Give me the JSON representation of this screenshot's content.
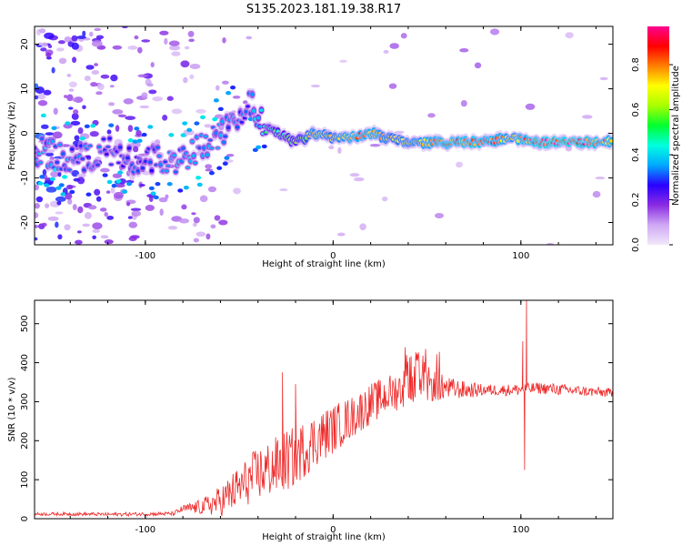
{
  "title": "S135.2023.181.19.38.R17",
  "colors": {
    "snr_line": "#ee2a2a",
    "axis": "#000000",
    "background": "#ffffff"
  },
  "chart_data": [
    {
      "type": "heatmap",
      "name": "spectrogram",
      "xlabel": "Height of straight line (km)",
      "ylabel": "Frequency (Hz)",
      "xlim": [
        -159,
        149
      ],
      "ylim": [
        -25,
        24
      ],
      "xticks": [
        -100,
        0,
        100
      ],
      "xtick_labels": [
        "-100",
        "0",
        "100"
      ],
      "yticks": [
        -20,
        -10,
        0,
        10,
        20
      ],
      "ytick_labels": [
        "-20",
        "-10",
        "0",
        "10",
        "20"
      ],
      "colorbar": {
        "label": "Normalized spectral amplitude",
        "range": [
          0,
          0.97
        ],
        "ticks": [
          0,
          0.2,
          0.4,
          0.6,
          0.8
        ],
        "tick_labels": [
          "0.0",
          "0.2",
          "0.4",
          "0.6",
          "0.8"
        ],
        "colormap": [
          "#f2e8fb",
          "#cfa8f4",
          "#8a2be2",
          "#2a00ff",
          "#00a8ff",
          "#00ffe0",
          "#00ff30",
          "#a8ff00",
          "#ffff00",
          "#ff8000",
          "#ff0000",
          "#ff0090"
        ]
      },
      "ridge_freq_points": [
        {
          "x": -155,
          "y": -4
        },
        {
          "x": -140,
          "y": -6
        },
        {
          "x": -120,
          "y": -4
        },
        {
          "x": -105,
          "y": -6
        },
        {
          "x": -95,
          "y": -6
        },
        {
          "x": -80,
          "y": -6
        },
        {
          "x": -70,
          "y": -3
        },
        {
          "x": -60,
          "y": 0
        },
        {
          "x": -50,
          "y": 4
        },
        {
          "x": -45,
          "y": 8
        },
        {
          "x": -40,
          "y": 3
        },
        {
          "x": -30,
          "y": 0
        },
        {
          "x": -20,
          "y": -2
        },
        {
          "x": -10,
          "y": 0
        },
        {
          "x": 0,
          "y": -1
        },
        {
          "x": 10,
          "y": -1
        },
        {
          "x": 20,
          "y": 0
        },
        {
          "x": 30,
          "y": -1
        },
        {
          "x": 40,
          "y": -2
        },
        {
          "x": 60,
          "y": -2
        },
        {
          "x": 80,
          "y": -2
        },
        {
          "x": 95,
          "y": -1
        },
        {
          "x": 110,
          "y": -2
        },
        {
          "x": 130,
          "y": -2
        },
        {
          "x": 148,
          "y": -2
        }
      ],
      "ridge_amplitude": [
        {
          "x": -155,
          "a": 0.35
        },
        {
          "x": -120,
          "a": 0.3
        },
        {
          "x": -100,
          "a": 0.3
        },
        {
          "x": -80,
          "a": 0.35
        },
        {
          "x": -60,
          "a": 0.35
        },
        {
          "x": -45,
          "a": 0.3
        },
        {
          "x": -35,
          "a": 0.5
        },
        {
          "x": -20,
          "a": 0.55
        },
        {
          "x": -10,
          "a": 0.75
        },
        {
          "x": 0,
          "a": 0.7
        },
        {
          "x": 10,
          "a": 0.8
        },
        {
          "x": 20,
          "a": 0.8
        },
        {
          "x": 30,
          "a": 0.7
        },
        {
          "x": 45,
          "a": 0.75
        },
        {
          "x": 60,
          "a": 0.85
        },
        {
          "x": 80,
          "a": 0.85
        },
        {
          "x": 95,
          "a": 0.75
        },
        {
          "x": 110,
          "a": 0.9
        },
        {
          "x": 130,
          "a": 0.9
        },
        {
          "x": 148,
          "a": 0.8
        }
      ]
    },
    {
      "type": "line",
      "name": "snr",
      "xlabel": "Height of straight line (km)",
      "ylabel": "SNR (10 * v/v)",
      "xlim": [
        -159,
        149
      ],
      "ylim": [
        0,
        560
      ],
      "xticks": [
        -100,
        0,
        100
      ],
      "xtick_labels": [
        "-100",
        "0",
        "100"
      ],
      "yticks": [
        0,
        100,
        200,
        300,
        400,
        500
      ],
      "ytick_labels": [
        "0",
        "100",
        "200",
        "300",
        "400",
        "500"
      ],
      "trend_points": [
        {
          "x": -159,
          "y": 12
        },
        {
          "x": -140,
          "y": 12
        },
        {
          "x": -120,
          "y": 11
        },
        {
          "x": -100,
          "y": 12
        },
        {
          "x": -85,
          "y": 13
        },
        {
          "x": -80,
          "y": 25
        },
        {
          "x": -70,
          "y": 30
        },
        {
          "x": -60,
          "y": 45
        },
        {
          "x": -50,
          "y": 80
        },
        {
          "x": -40,
          "y": 115
        },
        {
          "x": -30,
          "y": 135
        },
        {
          "x": -20,
          "y": 160
        },
        {
          "x": -10,
          "y": 200
        },
        {
          "x": 0,
          "y": 230
        },
        {
          "x": 10,
          "y": 260
        },
        {
          "x": 20,
          "y": 295
        },
        {
          "x": 30,
          "y": 320
        },
        {
          "x": 40,
          "y": 340
        },
        {
          "x": 50,
          "y": 345
        },
        {
          "x": 60,
          "y": 335
        },
        {
          "x": 70,
          "y": 330
        },
        {
          "x": 80,
          "y": 330
        },
        {
          "x": 95,
          "y": 330
        },
        {
          "x": 110,
          "y": 335
        },
        {
          "x": 130,
          "y": 328
        },
        {
          "x": 149,
          "y": 322
        }
      ],
      "noise_points": [
        {
          "x": -159,
          "n": 4
        },
        {
          "x": -85,
          "n": 5
        },
        {
          "x": -70,
          "n": 20
        },
        {
          "x": -55,
          "n": 50
        },
        {
          "x": -40,
          "n": 70
        },
        {
          "x": -25,
          "n": 80
        },
        {
          "x": -10,
          "n": 70
        },
        {
          "x": 10,
          "n": 55
        },
        {
          "x": 30,
          "n": 50
        },
        {
          "x": 45,
          "n": 55
        },
        {
          "x": 60,
          "n": 30
        },
        {
          "x": 80,
          "n": 15
        },
        {
          "x": 120,
          "n": 15
        },
        {
          "x": 149,
          "n": 12
        }
      ],
      "spikes": [
        {
          "x": -27,
          "y": 375
        },
        {
          "x": -20,
          "y": 345
        },
        {
          "x": 101,
          "y": 455
        },
        {
          "x": 102,
          "y": 125
        },
        {
          "x": 103,
          "y": 560
        }
      ],
      "peak_region_y": 440
    }
  ]
}
